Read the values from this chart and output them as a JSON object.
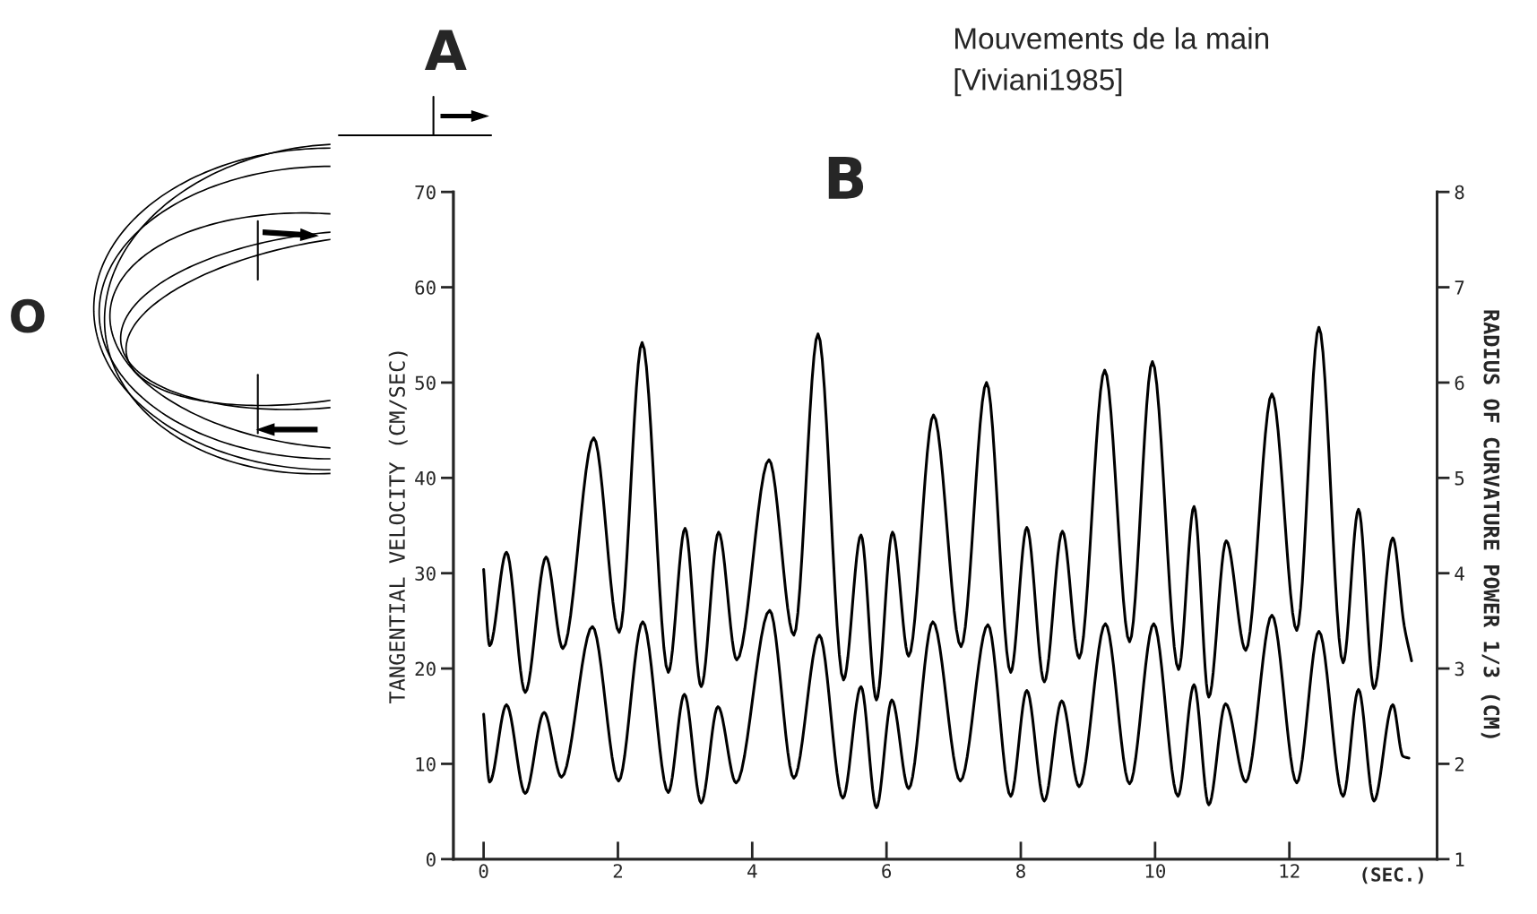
{
  "chart_data": {
    "type": "line",
    "title": "Mouvements de la main",
    "subtitle": "[Viviani1985]",
    "xlabel": "(SEC.)",
    "ylabel": "TANGENTIAL VELOCITY (CM/SEC)",
    "y2label": "RADIUS OF CURVATURE POWER 1/3 (CM)",
    "annotations": [
      "A",
      "B",
      "O"
    ],
    "xlim": [
      -0.45,
      14.2
    ],
    "xticks": [
      0,
      2,
      4,
      6,
      8,
      10,
      12
    ],
    "ylim": [
      0,
      70
    ],
    "yticks": [
      0,
      10,
      20,
      30,
      40,
      50,
      60,
      70
    ],
    "y2lim": [
      1,
      8
    ],
    "y2ticks": [
      1,
      2,
      3,
      4,
      5,
      6,
      7,
      8
    ],
    "grid": false,
    "legend": false,
    "marker": "none",
    "line_style": "solid",
    "series": [
      {
        "color": "#000000",
        "x": [
          0,
          0.09,
          0.34,
          0.62,
          0.93,
          1.18,
          1.64,
          2.02,
          2.36,
          2.75,
          3.0,
          3.24,
          3.5,
          3.77,
          4.25,
          4.62,
          4.98,
          5.36,
          5.62,
          5.85,
          6.09,
          6.33,
          6.7,
          7.11,
          7.49,
          7.85,
          8.09,
          8.35,
          8.62,
          8.87,
          9.25,
          9.62,
          9.96,
          10.35,
          10.58,
          10.8,
          11.06,
          11.35,
          11.74,
          12.11,
          12.44,
          12.8,
          13.03,
          13.26,
          13.54,
          13.71,
          13.82
        ],
        "values": [
          30.4,
          22.4,
          32.2,
          17.5,
          31.7,
          22.1,
          44.2,
          23.8,
          54.2,
          19.6,
          34.7,
          18.1,
          34.3,
          20.9,
          41.9,
          23.5,
          55.1,
          18.8,
          34.0,
          16.7,
          34.3,
          21.3,
          46.6,
          22.3,
          50.0,
          19.6,
          34.8,
          18.6,
          34.4,
          21.1,
          51.3,
          22.8,
          52.2,
          19.9,
          37.0,
          17.0,
          33.4,
          21.9,
          48.8,
          24.0,
          55.8,
          20.6,
          36.7,
          17.9,
          33.7,
          24.5,
          20.8
        ]
      },
      {
        "color": "#000000",
        "axis": "y2",
        "x": [
          0,
          0.09,
          0.34,
          0.62,
          0.9,
          1.16,
          1.62,
          2.01,
          2.37,
          2.75,
          2.99,
          3.24,
          3.49,
          3.76,
          4.26,
          4.62,
          5.0,
          5.35,
          5.62,
          5.85,
          6.08,
          6.33,
          6.69,
          7.1,
          7.51,
          7.85,
          8.09,
          8.35,
          8.61,
          8.87,
          9.26,
          9.62,
          9.98,
          10.34,
          10.58,
          10.8,
          11.05,
          11.35,
          11.74,
          12.11,
          12.44,
          12.8,
          13.03,
          13.26,
          13.54,
          13.69,
          13.78
        ],
        "values": [
          2.52,
          1.81,
          2.62,
          1.69,
          2.54,
          1.86,
          3.44,
          1.82,
          3.49,
          1.7,
          2.73,
          1.59,
          2.6,
          1.8,
          3.61,
          1.85,
          3.35,
          1.64,
          2.81,
          1.54,
          2.67,
          1.74,
          3.49,
          1.82,
          3.46,
          1.66,
          2.77,
          1.61,
          2.66,
          1.76,
          3.47,
          1.79,
          3.47,
          1.66,
          2.83,
          1.57,
          2.63,
          1.81,
          3.56,
          1.8,
          3.39,
          1.66,
          2.78,
          1.61,
          2.62,
          2.08,
          2.06
        ]
      }
    ]
  }
}
